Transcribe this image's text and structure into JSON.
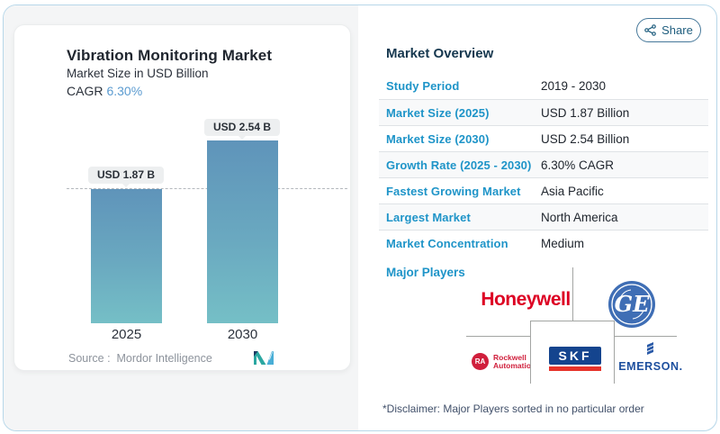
{
  "share": {
    "label": "Share",
    "icon": "share-nodes-icon",
    "text_color": "#1d5c7d"
  },
  "chart": {
    "title": "Vibration Monitoring Market",
    "subtitle": "Market Size in USD Billion",
    "cagr_label": "CAGR",
    "cagr_value": "6.30%",
    "cagr_color": "#5b9bd0",
    "source_label": "Source :",
    "source_value": "Mordor Intelligence",
    "logo": "mordor-intelligence-logo"
  },
  "chart_data": {
    "type": "bar",
    "categories": [
      "2025",
      "2030"
    ],
    "values": [
      1.87,
      2.54
    ],
    "value_labels": [
      "USD 1.87 B",
      "USD 2.54 B"
    ],
    "title": "Vibration Monitoring Market",
    "subtitle": "Market Size in USD Billion",
    "unit": "USD Billion",
    "ylim": [
      0,
      2.54
    ],
    "reference_line": 1.87,
    "grid": "single dashed line at first bar value",
    "bar_gradient": [
      "#5f94ba",
      "#75bfc6"
    ]
  },
  "overview": {
    "title": "Market Overview",
    "rows": [
      {
        "label": "Study Period",
        "value": "2019 - 2030"
      },
      {
        "label": "Market Size (2025)",
        "value": "USD 1.87 Billion"
      },
      {
        "label": "Market Size (2030)",
        "value": "USD 2.54 Billion"
      },
      {
        "label": "Growth Rate (2025 - 2030)",
        "value": "6.30% CAGR"
      },
      {
        "label": "Fastest Growing Market",
        "value": "Asia Pacific"
      },
      {
        "label": "Largest Market",
        "value": "North America"
      },
      {
        "label": "Market Concentration",
        "value": "Medium"
      }
    ],
    "label_color": "#1e94c8"
  },
  "major_players": {
    "label": "Major Players",
    "companies": {
      "honeywell": "Honeywell",
      "ge": "GE",
      "rockwell_monogram": "RA",
      "rockwell_line1": "Rockwell",
      "rockwell_line2": "Automation",
      "skf": "SKF",
      "emerson": "EMERSON."
    },
    "brand_colors": {
      "honeywell_red": "#dd0023",
      "ge_blue": "#3f6eb5",
      "rockwell_red": "#d01f3c",
      "skf_blue": "#14448e",
      "skf_red": "#e6332a",
      "emerson_blue": "#1d4f9e"
    }
  },
  "disclaimer": "*Disclaimer: Major Players sorted in no particular order"
}
